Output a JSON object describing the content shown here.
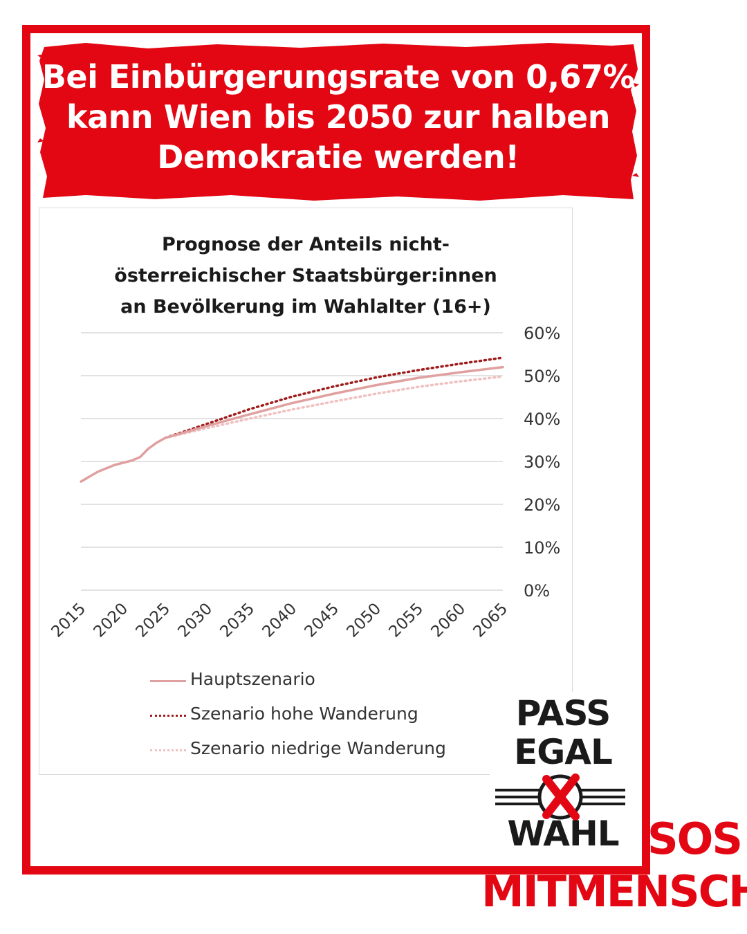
{
  "headline": "Bei Einbürgerungsrate von 0,67% kann Wien bis 2050 zur halben Demokratie werden!",
  "colors": {
    "brand_red": "#e30613",
    "main_series": "#e0a0a0",
    "high_series": "#a01c1c",
    "low_series": "#f0c0c0",
    "grid": "#d9d9d9"
  },
  "chart_data": {
    "type": "line",
    "title": "Prognose der Anteils nicht-\nösterreichischer Staatsbürger:innen\nan Bevölkerung im Wahlalter (16+)",
    "x_ticks": [
      "2015",
      "2020",
      "2025",
      "2030",
      "2035",
      "2040",
      "2045",
      "2050",
      "2055",
      "2060",
      "2065"
    ],
    "y_ticks": [
      "60%",
      "50%",
      "40%",
      "30%",
      "20%",
      "10%",
      "0%"
    ],
    "ylim": [
      0,
      60
    ],
    "xlim": [
      2015,
      2065
    ],
    "grid": true,
    "y_axis_position": "right",
    "legend_placement": "bottom",
    "series": [
      {
        "name": "Hauptszenario",
        "style": "solid",
        "x": [
          2015,
          2017,
          2019,
          2021,
          2022,
          2023,
          2024,
          2025,
          2030,
          2035,
          2040,
          2045,
          2050,
          2055,
          2060,
          2065
        ],
        "values": [
          25.3,
          27.6,
          29.2,
          30.2,
          31.0,
          33.0,
          34.4,
          35.5,
          38.3,
          41.0,
          43.6,
          45.8,
          47.8,
          49.5,
          50.8,
          52.0
        ]
      },
      {
        "name": "Szenario hohe Wanderung",
        "style": "dotted",
        "x": [
          2025,
          2030,
          2035,
          2040,
          2045,
          2050,
          2055,
          2060,
          2065
        ],
        "values": [
          35.5,
          38.8,
          42.2,
          45.1,
          47.5,
          49.6,
          51.3,
          52.8,
          54.2
        ]
      },
      {
        "name": "Szenario niedrige Wanderung",
        "style": "dotted",
        "x": [
          2025,
          2030,
          2035,
          2040,
          2045,
          2050,
          2055,
          2060,
          2065
        ],
        "values": [
          35.5,
          37.8,
          40.0,
          42.1,
          44.0,
          45.8,
          47.4,
          48.7,
          49.8
        ]
      }
    ]
  },
  "logo_pass": {
    "line1": "PASS",
    "line2": "EGAL",
    "line3": "WAHL"
  },
  "logo_sos": {
    "line1": "SOS",
    "line2": "MITMENSCH"
  }
}
